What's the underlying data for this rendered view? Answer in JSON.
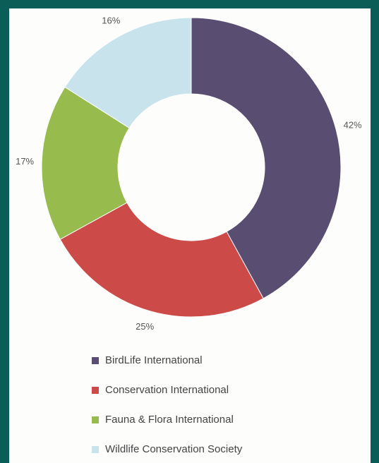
{
  "chart_data": {
    "type": "pie",
    "variant": "donut",
    "title": "",
    "categories": [
      "BirdLife International",
      "Conservation International",
      "Fauna & Flora International",
      "Wildlife Conservation Society"
    ],
    "values": [
      42,
      25,
      17,
      16
    ],
    "data_labels": [
      "42%",
      "25%",
      "17%",
      "16%"
    ],
    "colors": [
      "#594d71",
      "#cc4a47",
      "#97bb4c",
      "#c9e3ed"
    ],
    "legend_position": "bottom"
  }
}
